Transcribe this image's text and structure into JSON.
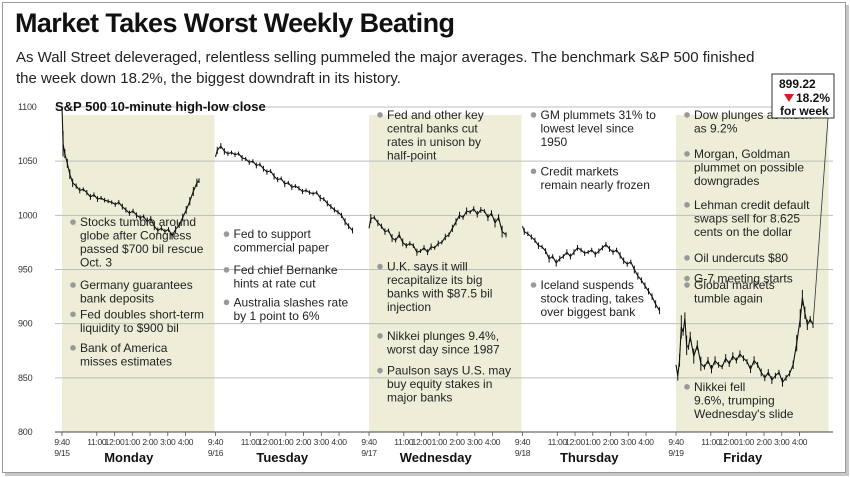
{
  "headline": "Market Takes Worst Weekly Beating",
  "subtitle": "As Wall Street deleveraged, relentless selling pummeled the major averages. The benchmark S&P 500 finished the week down 18.2%, the biggest downdraft in its history.",
  "chart_data": {
    "type": "line",
    "title": "S&P 500 10-minute high-low close",
    "xlabel": "",
    "ylabel": "",
    "ylim": [
      800,
      1100
    ],
    "yticks": [
      800,
      850,
      900,
      950,
      1000,
      1050,
      1100
    ],
    "grid": true,
    "time_ticks": [
      "9:40",
      "11:00",
      "12:00",
      "1:00",
      "2:00",
      "3:00",
      "4:00"
    ],
    "days": [
      {
        "name": "Monday",
        "date": "9/15",
        "highlight": true
      },
      {
        "name": "Tuesday",
        "date": "9/16",
        "highlight": false
      },
      {
        "name": "Wednesday",
        "date": "9/17",
        "highlight": true
      },
      {
        "name": "Thursday",
        "date": "9/18",
        "highlight": false
      },
      {
        "name": "Friday",
        "date": "9/19",
        "highlight": true
      }
    ],
    "series": [
      {
        "name": "S&P 500 close",
        "day_paths": [
          [
            [
              0,
              1100
            ],
            [
              0.3,
              1066
            ],
            [
              0.8,
              1057
            ],
            [
              1.5,
              1048
            ],
            [
              2.2,
              1038
            ],
            [
              3,
              1030
            ],
            [
              4,
              1027
            ],
            [
              5,
              1023
            ],
            [
              6,
              1024
            ],
            [
              7,
              1021
            ],
            [
              8,
              1017
            ],
            [
              9,
              1019
            ],
            [
              10,
              1015
            ],
            [
              11,
              1016
            ],
            [
              12,
              1014
            ],
            [
              13,
              1013
            ],
            [
              14,
              1012
            ],
            [
              15,
              1010
            ],
            [
              16,
              1012
            ],
            [
              17,
              1008
            ],
            [
              18,
              1005
            ],
            [
              19,
              1002
            ],
            [
              20,
              1004
            ],
            [
              21,
              1000
            ],
            [
              22,
              998
            ],
            [
              23,
              999
            ],
            [
              24,
              994
            ],
            [
              25,
              997
            ],
            [
              26,
              990
            ],
            [
              27,
              986
            ],
            [
              28,
              988
            ],
            [
              29,
              985
            ],
            [
              30,
              987
            ],
            [
              31,
              981
            ],
            [
              32,
              987
            ],
            [
              33,
              991
            ],
            [
              34,
              998
            ],
            [
              35,
              1005
            ],
            [
              36,
              1013
            ],
            [
              37,
              1022
            ],
            [
              38,
              1030
            ],
            [
              38.6,
              1032
            ]
          ],
          [
            [
              0,
              1054
            ],
            [
              0.5,
              1060
            ],
            [
              1.5,
              1064
            ],
            [
              2.5,
              1059
            ],
            [
              3.5,
              1057
            ],
            [
              4.5,
              1058
            ],
            [
              5.5,
              1056
            ],
            [
              6.5,
              1057
            ],
            [
              7.5,
              1053
            ],
            [
              8.5,
              1052
            ],
            [
              9.5,
              1049
            ],
            [
              10.5,
              1050
            ],
            [
              11.5,
              1046
            ],
            [
              12.5,
              1047
            ],
            [
              13.5,
              1043
            ],
            [
              14.5,
              1040
            ],
            [
              15.5,
              1041
            ],
            [
              16.5,
              1036
            ],
            [
              17.5,
              1033
            ],
            [
              18.5,
              1034
            ],
            [
              19.5,
              1029
            ],
            [
              20.5,
              1030
            ],
            [
              21.5,
              1026
            ],
            [
              22.5,
              1027
            ],
            [
              23.5,
              1025
            ],
            [
              24.5,
              1022
            ],
            [
              25.5,
              1023
            ],
            [
              26.5,
              1021
            ],
            [
              27.5,
              1020
            ],
            [
              28.5,
              1021
            ],
            [
              29.5,
              1016
            ],
            [
              30.5,
              1015
            ],
            [
              31.5,
              1011
            ],
            [
              32.5,
              1008
            ],
            [
              33.5,
              1005
            ],
            [
              34.5,
              1003
            ],
            [
              35.5,
              1000
            ],
            [
              36.5,
              994
            ],
            [
              37.5,
              990
            ],
            [
              38.6,
              986
            ]
          ],
          [
            [
              0,
              988
            ],
            [
              0.5,
              997
            ],
            [
              1.5,
              998
            ],
            [
              2.5,
              993
            ],
            [
              3.5,
              990
            ],
            [
              4.5,
              985
            ],
            [
              5.5,
              986
            ],
            [
              6.5,
              979
            ],
            [
              7.5,
              977
            ],
            [
              8.5,
              982
            ],
            [
              9.5,
              975
            ],
            [
              10.5,
              972
            ],
            [
              11.5,
              974
            ],
            [
              12.5,
              972
            ],
            [
              13.5,
              966
            ],
            [
              14.5,
              967
            ],
            [
              15.5,
              970
            ],
            [
              16.5,
              966
            ],
            [
              17.5,
              971
            ],
            [
              18.5,
              970
            ],
            [
              19.5,
              974
            ],
            [
              20.5,
              975
            ],
            [
              21.5,
              980
            ],
            [
              22.5,
              982
            ],
            [
              23.5,
              988
            ],
            [
              24.5,
              994
            ],
            [
              25.5,
              1000
            ],
            [
              26.5,
              998
            ],
            [
              27.5,
              1004
            ],
            [
              28.5,
              1003
            ],
            [
              29.5,
              1006
            ],
            [
              30.5,
              1001
            ],
            [
              31.5,
              1005
            ],
            [
              32.5,
              1004
            ],
            [
              33.5,
              998
            ],
            [
              34.5,
              1002
            ],
            [
              35.5,
              993
            ],
            [
              36.5,
              998
            ],
            [
              37.5,
              985
            ],
            [
              38.6,
              982
            ]
          ],
          [
            [
              0,
              990
            ],
            [
              0.5,
              985
            ],
            [
              1.5,
              983
            ],
            [
              2.5,
              980
            ],
            [
              3.5,
              977
            ],
            [
              4.5,
              972
            ],
            [
              5.5,
              971
            ],
            [
              6.5,
              967
            ],
            [
              7.5,
              960
            ],
            [
              8.5,
              962
            ],
            [
              9.5,
              956
            ],
            [
              10.5,
              960
            ],
            [
              11.5,
              962
            ],
            [
              12.5,
              966
            ],
            [
              13.5,
              962
            ],
            [
              14.5,
              966
            ],
            [
              15.5,
              970
            ],
            [
              16.5,
              968
            ],
            [
              17.5,
              965
            ],
            [
              18.5,
              966
            ],
            [
              19.5,
              968
            ],
            [
              20.5,
              964
            ],
            [
              21.5,
              967
            ],
            [
              22.5,
              970
            ],
            [
              23.5,
              973
            ],
            [
              24.5,
              969
            ],
            [
              25.5,
              966
            ],
            [
              26.5,
              968
            ],
            [
              27.5,
              963
            ],
            [
              28.5,
              958
            ],
            [
              29.5,
              955
            ],
            [
              30.5,
              957
            ],
            [
              31.5,
              950
            ],
            [
              32.5,
              944
            ],
            [
              33.5,
              940
            ],
            [
              34.5,
              935
            ],
            [
              35.5,
              930
            ],
            [
              36.5,
              925
            ],
            [
              37.5,
              918
            ],
            [
              38.6,
              912
            ]
          ],
          [
            [
              0,
              862
            ],
            [
              0.5,
              852
            ],
            [
              1,
              866
            ],
            [
              1.5,
              897
            ],
            [
              2,
              892
            ],
            [
              2.5,
              905
            ],
            [
              3,
              880
            ],
            [
              3.5,
              878
            ],
            [
              4,
              888
            ],
            [
              5,
              870
            ],
            [
              6,
              880
            ],
            [
              7,
              863
            ],
            [
              8,
              860
            ],
            [
              9,
              866
            ],
            [
              10,
              858
            ],
            [
              11,
              866
            ],
            [
              12,
              862
            ],
            [
              13,
              860
            ],
            [
              14,
              868
            ],
            [
              15,
              863
            ],
            [
              16,
              870
            ],
            [
              17,
              866
            ],
            [
              18,
              872
            ],
            [
              19,
              868
            ],
            [
              20,
              865
            ],
            [
              21,
              858
            ],
            [
              22,
              866
            ],
            [
              23,
              862
            ],
            [
              24,
              855
            ],
            [
              25,
              850
            ],
            [
              26,
              855
            ],
            [
              27,
              848
            ],
            [
              28,
              852
            ],
            [
              29,
              855
            ],
            [
              30,
              846
            ],
            [
              31,
              850
            ],
            [
              32,
              854
            ],
            [
              33,
              862
            ],
            [
              34,
              882
            ],
            [
              35,
              905
            ],
            [
              35.6,
              924
            ],
            [
              36.3,
              910
            ],
            [
              37,
              899
            ],
            [
              37.8,
              904
            ],
            [
              38.6,
              899
            ]
          ]
        ]
      }
    ],
    "final_value": "899.22",
    "final_change": "18.2%",
    "final_change_suffix": "for week",
    "annotations": [
      {
        "day": 0,
        "start_value": 990,
        "lines": [
          "Stocks tumble around",
          "globe after Congress",
          "passed $700 bil rescue",
          "Oct. 3"
        ]
      },
      {
        "day": 0,
        "start_value": 932,
        "lines": [
          "Germany guarantees",
          "bank deposits"
        ]
      },
      {
        "day": 0,
        "start_value": 905,
        "lines": [
          "Fed doubles short-term",
          "liquidity to $900 bil"
        ]
      },
      {
        "day": 0,
        "start_value": 874,
        "lines": [
          "Bank of America",
          "misses estimates"
        ]
      },
      {
        "day": 1,
        "start_value": 979,
        "lines": [
          "Fed to support",
          "commercial paper"
        ]
      },
      {
        "day": 1,
        "start_value": 946,
        "lines": [
          "Fed chief Bernanke",
          "hints at rate cut"
        ]
      },
      {
        "day": 1,
        "start_value": 916,
        "lines": [
          "Australia slashes rate",
          "by 1 point to 6%"
        ]
      },
      {
        "day": 2,
        "start_value": 1089,
        "lines": [
          "Fed and other key",
          "central banks cut",
          "rates in unison by",
          "half-point"
        ]
      },
      {
        "day": 2,
        "start_value": 949,
        "lines": [
          "U.K. says it will",
          "recapitalize its big",
          "banks with $87.5 bil",
          "injection"
        ]
      },
      {
        "day": 2,
        "start_value": 885,
        "lines": [
          "Nikkei plunges 9.4%,",
          "worst day since 1987"
        ]
      },
      {
        "day": 2,
        "start_value": 853,
        "lines": [
          "Paulson says U.S. may",
          "buy equity stakes in",
          "major banks"
        ]
      },
      {
        "day": 3,
        "start_value": 1089,
        "lines": [
          "GM plummets 31% to",
          "lowest level since",
          "1950"
        ]
      },
      {
        "day": 3,
        "start_value": 1037,
        "lines": [
          "Credit markets",
          "remain nearly frozen"
        ]
      },
      {
        "day": 3,
        "start_value": 932,
        "lines": [
          "Iceland suspends",
          "stock trading, takes",
          "over biggest bank"
        ]
      },
      {
        "day": 4,
        "start_value": 1089,
        "lines": [
          "Dow plunges as much",
          "as 9.2%"
        ]
      },
      {
        "day": 4,
        "start_value": 1053,
        "lines": [
          "Morgan, Goldman",
          "plummet on possible",
          "downgrades"
        ]
      },
      {
        "day": 4,
        "start_value": 1006,
        "lines": [
          "Lehman credit default",
          "swaps sell for 8.625",
          "cents on the dollar"
        ]
      },
      {
        "day": 4,
        "start_value": 957,
        "lines": [
          "Oil undercuts $80"
        ]
      },
      {
        "day": 4,
        "start_value": 938,
        "lines": [
          "G-7 meeting starts"
        ]
      },
      {
        "day": 4,
        "start_value": 932,
        "lines": [
          "Global markets",
          "    tumble again"
        ],
        "skip": true
      },
      {
        "day": 4,
        "start_value": 838,
        "lines": [
          "Nikkei fell",
          "9.6%, trumping",
          "Wednesday's slide"
        ]
      }
    ]
  }
}
